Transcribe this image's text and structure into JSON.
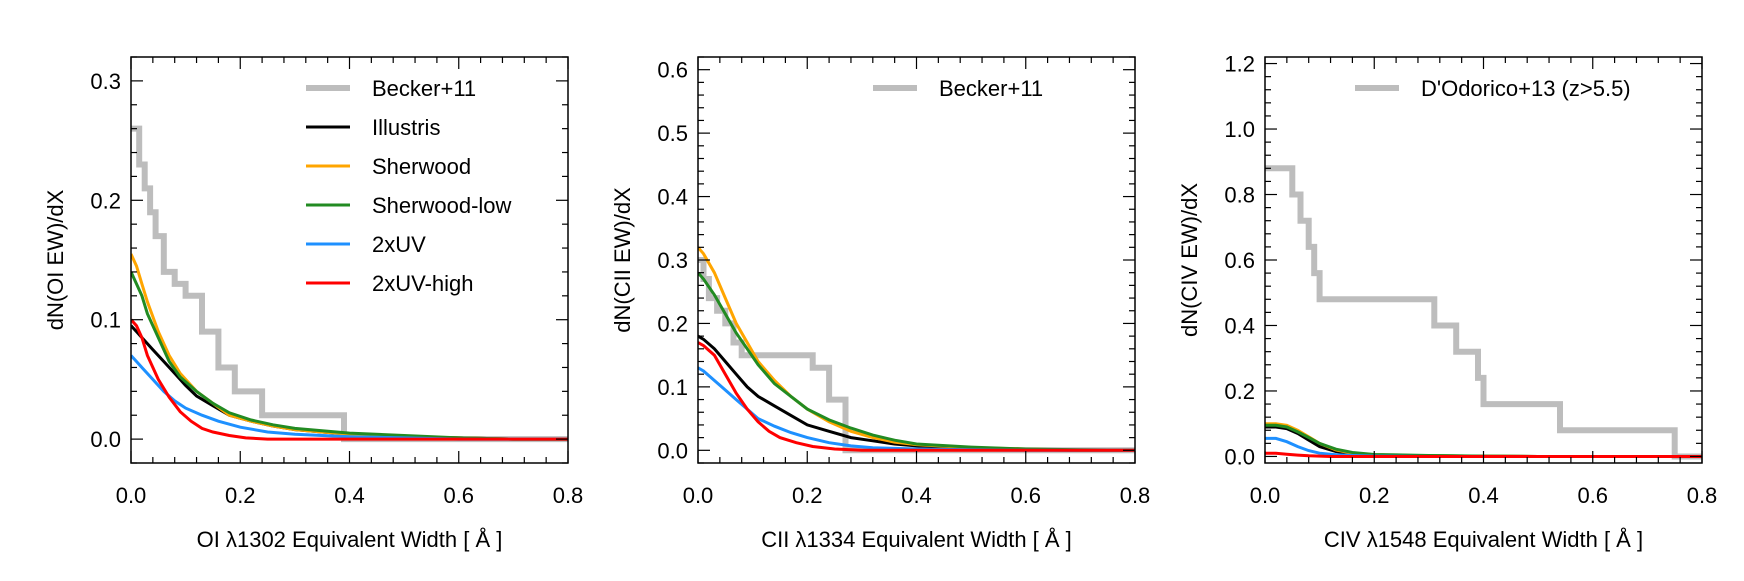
{
  "chart_data": [
    {
      "type": "line",
      "xlabel": "OI λ1302 Equivalent Width [ Å ]",
      "ylabel": "dN(OI EW)/dX",
      "xlim": [
        0.0,
        0.8
      ],
      "ylim": [
        -0.02,
        0.32
      ],
      "xticks": [
        0.0,
        0.2,
        0.4,
        0.6,
        0.8
      ],
      "xtick_labels": [
        "0.0",
        "0.2",
        "0.4",
        "0.6",
        "0.8"
      ],
      "yticks": [
        0.0,
        0.1,
        0.2,
        0.3
      ],
      "ytick_labels": [
        "0.0",
        "0.1",
        "0.2",
        "0.3"
      ],
      "legend_position": "top-right",
      "series": [
        {
          "name": "Becker+11",
          "color": "#bdbdbd",
          "width": 6,
          "step": true,
          "x": [
            0.0,
            0.015,
            0.025,
            0.035,
            0.045,
            0.06,
            0.08,
            0.1,
            0.13,
            0.16,
            0.19,
            0.24,
            0.39
          ],
          "y": [
            0.26,
            0.23,
            0.21,
            0.19,
            0.17,
            0.14,
            0.13,
            0.12,
            0.09,
            0.06,
            0.04,
            0.02,
            0.0
          ]
        },
        {
          "name": "Illustris",
          "color": "#000000",
          "width": 3,
          "x": [
            0.0,
            0.01,
            0.02,
            0.04,
            0.06,
            0.08,
            0.1,
            0.12,
            0.15,
            0.18,
            0.22,
            0.26,
            0.3,
            0.35,
            0.4,
            0.5,
            0.6,
            0.7,
            0.8
          ],
          "y": [
            0.095,
            0.09,
            0.085,
            0.075,
            0.065,
            0.055,
            0.045,
            0.036,
            0.028,
            0.02,
            0.015,
            0.011,
            0.008,
            0.006,
            0.004,
            0.002,
            0.001,
            0.0,
            0.0
          ]
        },
        {
          "name": "Sherwood",
          "color": "#ffa500",
          "width": 3,
          "x": [
            0.0,
            0.01,
            0.02,
            0.03,
            0.05,
            0.07,
            0.09,
            0.12,
            0.15,
            0.18,
            0.22,
            0.26,
            0.3,
            0.35,
            0.4,
            0.5,
            0.6,
            0.7,
            0.8
          ],
          "y": [
            0.155,
            0.145,
            0.13,
            0.115,
            0.09,
            0.07,
            0.055,
            0.04,
            0.03,
            0.02,
            0.015,
            0.011,
            0.008,
            0.006,
            0.004,
            0.002,
            0.001,
            0.0,
            0.0
          ]
        },
        {
          "name": "Sherwood-low",
          "color": "#228b22",
          "width": 3,
          "x": [
            0.0,
            0.01,
            0.02,
            0.03,
            0.05,
            0.07,
            0.09,
            0.12,
            0.15,
            0.18,
            0.22,
            0.26,
            0.3,
            0.35,
            0.4,
            0.5,
            0.6,
            0.7,
            0.8
          ],
          "y": [
            0.14,
            0.13,
            0.12,
            0.105,
            0.085,
            0.065,
            0.052,
            0.04,
            0.03,
            0.022,
            0.016,
            0.012,
            0.009,
            0.007,
            0.005,
            0.003,
            0.001,
            0.0,
            0.0
          ]
        },
        {
          "name": "2xUV",
          "color": "#1e90ff",
          "width": 3,
          "x": [
            0.0,
            0.01,
            0.02,
            0.04,
            0.06,
            0.08,
            0.1,
            0.13,
            0.16,
            0.2,
            0.25,
            0.3,
            0.35,
            0.4,
            0.5,
            0.6,
            0.7,
            0.8
          ],
          "y": [
            0.07,
            0.065,
            0.06,
            0.05,
            0.04,
            0.032,
            0.026,
            0.02,
            0.015,
            0.01,
            0.006,
            0.004,
            0.003,
            0.002,
            0.001,
            0.0,
            0.0,
            0.0
          ]
        },
        {
          "name": "2xUV-high",
          "color": "#ff0000",
          "width": 3,
          "x": [
            0.0,
            0.01,
            0.02,
            0.03,
            0.05,
            0.07,
            0.09,
            0.11,
            0.13,
            0.15,
            0.18,
            0.21,
            0.25,
            0.3,
            0.4,
            0.5,
            0.6,
            0.8
          ],
          "y": [
            0.1,
            0.095,
            0.085,
            0.07,
            0.05,
            0.035,
            0.023,
            0.015,
            0.009,
            0.006,
            0.003,
            0.001,
            0.0,
            0.0,
            0.0,
            0.0,
            0.0,
            0.0
          ]
        }
      ]
    },
    {
      "type": "line",
      "xlabel": "CII λ1334 Equivalent Width [ Å ]",
      "ylabel": "dN(CII EW)/dX",
      "xlim": [
        0.0,
        0.8
      ],
      "ylim": [
        -0.02,
        0.62
      ],
      "xticks": [
        0.0,
        0.2,
        0.4,
        0.6,
        0.8
      ],
      "xtick_labels": [
        "0.0",
        "0.2",
        "0.4",
        "0.6",
        "0.8"
      ],
      "yticks": [
        0.0,
        0.1,
        0.2,
        0.3,
        0.4,
        0.5,
        0.6
      ],
      "ytick_labels": [
        "0.0",
        "0.1",
        "0.2",
        "0.3",
        "0.4",
        "0.5",
        "0.6"
      ],
      "legend_position": "top-right",
      "series": [
        {
          "name": "Becker+11",
          "color": "#bdbdbd",
          "width": 6,
          "step": true,
          "x": [
            0.0,
            0.01,
            0.02,
            0.035,
            0.05,
            0.065,
            0.08,
            0.1,
            0.15,
            0.21,
            0.24,
            0.27,
            0.28
          ],
          "y": [
            0.3,
            0.27,
            0.24,
            0.22,
            0.2,
            0.17,
            0.15,
            0.15,
            0.15,
            0.13,
            0.08,
            0.0,
            0.0
          ]
        },
        {
          "name": "Illustris",
          "color": "#000000",
          "width": 3,
          "x": [
            0.0,
            0.01,
            0.03,
            0.05,
            0.07,
            0.09,
            0.11,
            0.14,
            0.17,
            0.2,
            0.24,
            0.28,
            0.32,
            0.36,
            0.4,
            0.5,
            0.6,
            0.7,
            0.8
          ],
          "y": [
            0.18,
            0.175,
            0.16,
            0.14,
            0.12,
            0.1,
            0.085,
            0.07,
            0.055,
            0.04,
            0.03,
            0.02,
            0.015,
            0.01,
            0.007,
            0.003,
            0.001,
            0.0,
            0.0
          ]
        },
        {
          "name": "Sherwood",
          "color": "#ffa500",
          "width": 3,
          "x": [
            0.0,
            0.01,
            0.03,
            0.05,
            0.07,
            0.09,
            0.11,
            0.14,
            0.17,
            0.2,
            0.24,
            0.28,
            0.32,
            0.36,
            0.4,
            0.5,
            0.6,
            0.7,
            0.8
          ],
          "y": [
            0.32,
            0.31,
            0.28,
            0.24,
            0.2,
            0.17,
            0.14,
            0.11,
            0.085,
            0.065,
            0.045,
            0.03,
            0.02,
            0.013,
            0.009,
            0.004,
            0.002,
            0.0,
            0.0
          ]
        },
        {
          "name": "Sherwood-low",
          "color": "#228b22",
          "width": 3,
          "x": [
            0.0,
            0.01,
            0.03,
            0.05,
            0.07,
            0.09,
            0.11,
            0.14,
            0.17,
            0.2,
            0.24,
            0.28,
            0.32,
            0.36,
            0.4,
            0.5,
            0.6,
            0.7,
            0.8
          ],
          "y": [
            0.28,
            0.27,
            0.245,
            0.215,
            0.185,
            0.16,
            0.135,
            0.105,
            0.085,
            0.065,
            0.048,
            0.035,
            0.024,
            0.016,
            0.01,
            0.005,
            0.002,
            0.001,
            0.0
          ]
        },
        {
          "name": "2xUV",
          "color": "#1e90ff",
          "width": 3,
          "x": [
            0.0,
            0.01,
            0.03,
            0.05,
            0.07,
            0.09,
            0.11,
            0.14,
            0.17,
            0.2,
            0.24,
            0.28,
            0.32,
            0.4,
            0.5,
            0.6,
            0.8
          ],
          "y": [
            0.13,
            0.125,
            0.11,
            0.095,
            0.08,
            0.065,
            0.05,
            0.038,
            0.028,
            0.02,
            0.012,
            0.007,
            0.004,
            0.002,
            0.001,
            0.0,
            0.0
          ]
        },
        {
          "name": "2xUV-high",
          "color": "#ff0000",
          "width": 3,
          "x": [
            0.0,
            0.01,
            0.03,
            0.05,
            0.07,
            0.09,
            0.11,
            0.13,
            0.15,
            0.18,
            0.21,
            0.25,
            0.3,
            0.4,
            0.5,
            0.6,
            0.8
          ],
          "y": [
            0.17,
            0.165,
            0.15,
            0.12,
            0.09,
            0.065,
            0.045,
            0.03,
            0.02,
            0.012,
            0.006,
            0.002,
            0.0,
            0.0,
            0.0,
            0.0,
            0.0
          ]
        }
      ]
    },
    {
      "type": "line",
      "xlabel": "CIV λ1548 Equivalent Width [ Å ]",
      "ylabel": "dN(CIV EW)/dX",
      "xlim": [
        0.0,
        0.8
      ],
      "ylim": [
        -0.02,
        1.22
      ],
      "xticks": [
        0.0,
        0.2,
        0.4,
        0.6,
        0.8
      ],
      "xtick_labels": [
        "0.0",
        "0.2",
        "0.4",
        "0.6",
        "0.8"
      ],
      "yticks": [
        0.0,
        0.2,
        0.4,
        0.6,
        0.8,
        1.0,
        1.2
      ],
      "ytick_labels": [
        "0.0",
        "0.2",
        "0.4",
        "0.6",
        "0.8",
        "1.0",
        "1.2"
      ],
      "legend_position": "top-right",
      "series": [
        {
          "name": "D'Odorico+13 (z>5.5)",
          "color": "#bdbdbd",
          "width": 6,
          "step": true,
          "x": [
            0.0,
            0.05,
            0.065,
            0.08,
            0.09,
            0.1,
            0.11,
            0.31,
            0.35,
            0.39,
            0.4,
            0.54,
            0.75,
            0.8
          ],
          "y": [
            0.88,
            0.8,
            0.72,
            0.64,
            0.56,
            0.48,
            0.48,
            0.4,
            0.32,
            0.24,
            0.16,
            0.08,
            0.0,
            0.0
          ]
        },
        {
          "name": "Illustris",
          "color": "#000000",
          "width": 3,
          "x": [
            0.0,
            0.02,
            0.04,
            0.06,
            0.08,
            0.1,
            0.13,
            0.16,
            0.2,
            0.3,
            0.4,
            0.5,
            0.8
          ],
          "y": [
            0.09,
            0.09,
            0.085,
            0.07,
            0.05,
            0.03,
            0.015,
            0.008,
            0.004,
            0.002,
            0.001,
            0.0,
            0.0
          ]
        },
        {
          "name": "Sherwood",
          "color": "#ffa500",
          "width": 3,
          "x": [
            0.0,
            0.02,
            0.04,
            0.06,
            0.08,
            0.1,
            0.13,
            0.16,
            0.2,
            0.3,
            0.4,
            0.5,
            0.8
          ],
          "y": [
            0.1,
            0.1,
            0.095,
            0.08,
            0.06,
            0.04,
            0.02,
            0.01,
            0.005,
            0.002,
            0.001,
            0.0,
            0.0
          ]
        },
        {
          "name": "Sherwood-low",
          "color": "#228b22",
          "width": 3,
          "x": [
            0.0,
            0.02,
            0.04,
            0.06,
            0.08,
            0.1,
            0.13,
            0.16,
            0.2,
            0.3,
            0.4,
            0.5,
            0.8
          ],
          "y": [
            0.095,
            0.095,
            0.09,
            0.075,
            0.058,
            0.04,
            0.022,
            0.012,
            0.006,
            0.003,
            0.001,
            0.0,
            0.0
          ]
        },
        {
          "name": "2xUV",
          "color": "#1e90ff",
          "width": 3,
          "x": [
            0.0,
            0.02,
            0.04,
            0.06,
            0.08,
            0.1,
            0.13,
            0.16,
            0.2,
            0.3,
            0.8
          ],
          "y": [
            0.055,
            0.055,
            0.045,
            0.03,
            0.018,
            0.01,
            0.005,
            0.003,
            0.001,
            0.0,
            0.0
          ]
        },
        {
          "name": "2xUV-high",
          "color": "#ff0000",
          "width": 3,
          "x": [
            0.0,
            0.02,
            0.04,
            0.06,
            0.08,
            0.12,
            0.2,
            0.8
          ],
          "y": [
            0.01,
            0.01,
            0.007,
            0.004,
            0.002,
            0.0,
            0.0,
            0.0
          ]
        }
      ]
    }
  ]
}
